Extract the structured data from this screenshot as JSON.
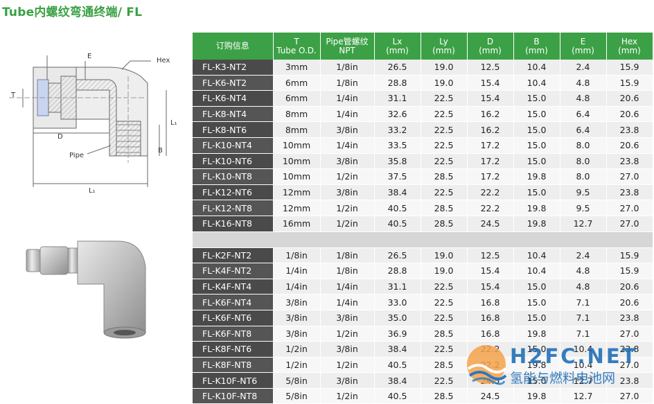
{
  "title": "Tube内螺纹弯通终端/ FL",
  "drawing": {
    "labels": [
      "E",
      "Hex",
      "T",
      "D",
      "L₁",
      "B",
      "Pipe",
      "L₁"
    ]
  },
  "table": {
    "headers": [
      {
        "line1": "订购信息",
        "line2": ""
      },
      {
        "line1": "T",
        "line2": "Tube O.D."
      },
      {
        "line1": "Pipe管螺纹",
        "line2": "NPT"
      },
      {
        "line1": "Lx",
        "line2": "(mm)"
      },
      {
        "line1": "Ly",
        "line2": "(mm)"
      },
      {
        "line1": "D",
        "line2": "(mm)"
      },
      {
        "line1": "B",
        "line2": "(mm)"
      },
      {
        "line1": "E",
        "line2": "(mm)"
      },
      {
        "line1": "Hex",
        "line2": "(mm)"
      }
    ],
    "group1": [
      [
        "FL-K3-NT2",
        "3mm",
        "1/8in",
        "26.5",
        "19.0",
        "12.5",
        "10.4",
        "2.4",
        "15.9"
      ],
      [
        "FL-K6-NT2",
        "6mm",
        "1/8in",
        "28.8",
        "19.0",
        "15.4",
        "10.4",
        "4.8",
        "15.9"
      ],
      [
        "FL-K6-NT4",
        "6mm",
        "1/4in",
        "31.1",
        "22.5",
        "15.4",
        "15.0",
        "4.8",
        "20.6"
      ],
      [
        "FL-K8-NT4",
        "8mm",
        "1/4in",
        "32.6",
        "22.5",
        "16.2",
        "15.0",
        "6.4",
        "20.6"
      ],
      [
        "FL-K8-NT6",
        "8mm",
        "3/8in",
        "33.2",
        "22.5",
        "16.2",
        "15.0",
        "6.4",
        "23.8"
      ],
      [
        "FL-K10-NT4",
        "10mm",
        "1/4in",
        "33.5",
        "22.5",
        "17.2",
        "15.0",
        "8.0",
        "20.6"
      ],
      [
        "FL-K10-NT6",
        "10mm",
        "3/8in",
        "35.8",
        "22.5",
        "17.2",
        "15.0",
        "8.0",
        "23.8"
      ],
      [
        "FL-K10-NT8",
        "10mm",
        "1/2in",
        "37.5",
        "28.5",
        "17.2",
        "19.8",
        "8.0",
        "27.0"
      ],
      [
        "FL-K12-NT6",
        "12mm",
        "3/8in",
        "38.4",
        "22.5",
        "22.2",
        "15.0",
        "9.5",
        "23.8"
      ],
      [
        "FL-K12-NT8",
        "12mm",
        "1/2in",
        "40.5",
        "28.5",
        "22.2",
        "19.8",
        "9.5",
        "27.0"
      ],
      [
        "FL-K16-NT8",
        "16mm",
        "1/2in",
        "40.5",
        "28.5",
        "24.5",
        "19.8",
        "12.7",
        "27.0"
      ]
    ],
    "group2": [
      [
        "FL-K2F-NT2",
        "1/8in",
        "1/8in",
        "26.5",
        "19.0",
        "12.5",
        "10.4",
        "2.4",
        "15.9"
      ],
      [
        "FL-K4F-NT2",
        "1/4in",
        "1/8in",
        "28.8",
        "19.0",
        "15.4",
        "10.4",
        "4.8",
        "15.9"
      ],
      [
        "FL-K4F-NT4",
        "1/4in",
        "1/4in",
        "31.1",
        "22.5",
        "15.4",
        "15.0",
        "4.8",
        "20.6"
      ],
      [
        "FL-K6F-NT4",
        "3/8in",
        "1/4in",
        "33.0",
        "22.5",
        "16.8",
        "15.0",
        "7.1",
        "20.6"
      ],
      [
        "FL-K6F-NT6",
        "3/8in",
        "3/8in",
        "35.0",
        "22.5",
        "16.8",
        "15.0",
        "7.1",
        "23.8"
      ],
      [
        "FL-K6F-NT8",
        "3/8in",
        "1/2in",
        "36.9",
        "28.5",
        "16.8",
        "19.8",
        "7.1",
        "27.0"
      ],
      [
        "FL-K8F-NT6",
        "1/2in",
        "3/8in",
        "38.4",
        "22.5",
        "22.2",
        "15.0",
        "10.4",
        "23.8"
      ],
      [
        "FL-K8F-NT8",
        "1/2in",
        "1/2in",
        "40.5",
        "28.5",
        "22.2",
        "19.8",
        "10.4",
        "27.0"
      ],
      [
        "FL-K10F-NT6",
        "5/8in",
        "3/8in",
        "38.4",
        "22.5",
        "24.5",
        "15.0",
        "12.7",
        "23.8"
      ],
      [
        "FL-K10F-NT8",
        "5/8in",
        "1/2in",
        "40.5",
        "28.5",
        "24.5",
        "19.8",
        "12.7",
        "27.0"
      ]
    ]
  },
  "watermark": {
    "brand": "H2FC.NET",
    "subtitle": "氢能与燃料电池网"
  },
  "colors": {
    "header_green": "#3ca146",
    "code_cell": "#4a4a4a",
    "row_bg": "#eeeeee",
    "separator": "#d6d6d6",
    "brand_blue": "#1f6fb8",
    "brand_orange": "#ef7d22"
  }
}
